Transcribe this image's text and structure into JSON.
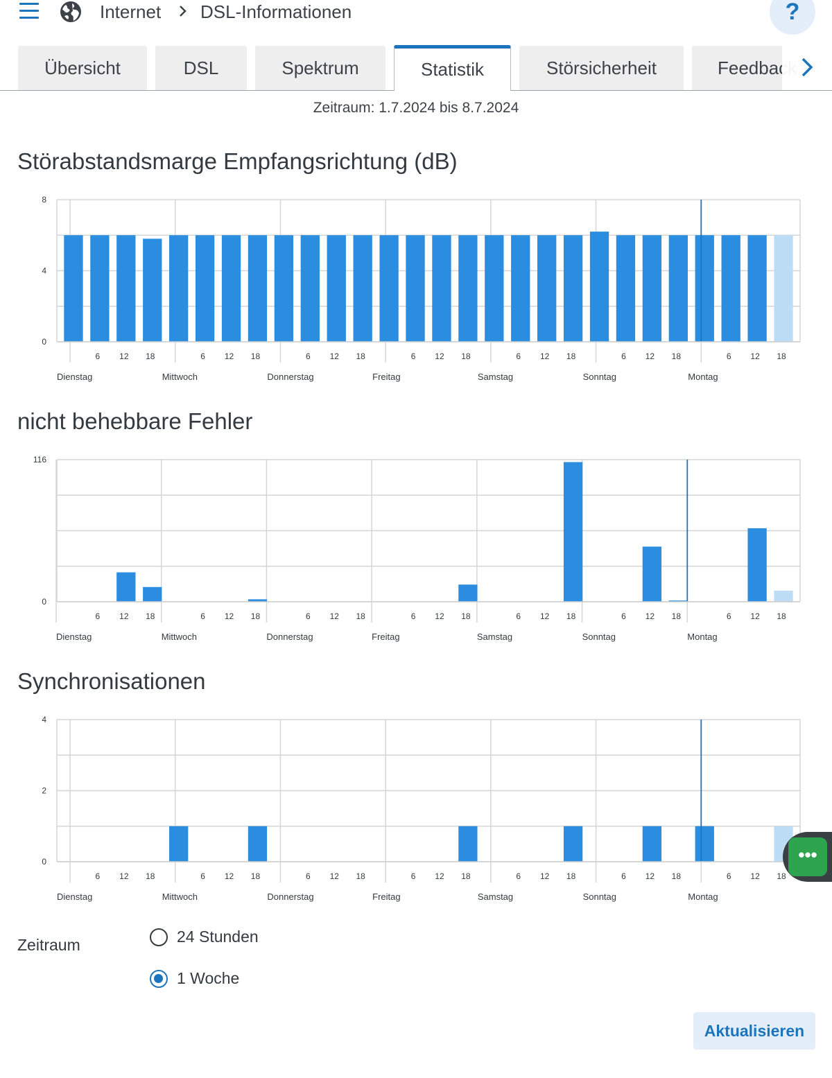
{
  "header": {
    "menu_icon": "menu-icon",
    "globe_icon": "globe-icon",
    "breadcrumb": [
      "Internet",
      "DSL-Informationen"
    ],
    "help_label": "?"
  },
  "tabs": [
    {
      "label": "Übersicht",
      "active": false
    },
    {
      "label": "DSL",
      "active": false
    },
    {
      "label": "Spektrum",
      "active": false
    },
    {
      "label": "Statistik",
      "active": true
    },
    {
      "label": "Störsicherheit",
      "active": false
    },
    {
      "label": "Feedback",
      "active": false
    }
  ],
  "period_text": "Zeitraum: 1.7.2024 bis 8.7.2024",
  "colors": {
    "accent": "#1c75bc",
    "bar": "#2a8de0",
    "bar_current": "#bddcf5",
    "grid": "#d5d5d5"
  },
  "chart_data": [
    {
      "type": "bar",
      "title": "Störabstandsmarge Empfangsrichtung (dB)",
      "yticks": [
        "0",
        "4",
        "8"
      ],
      "ylim": [
        0,
        8
      ],
      "x_hour_ticks": [
        "6",
        "12",
        "18"
      ],
      "x_day_labels": [
        "Dienstag",
        "Mittwoch",
        "Donnerstag",
        "Freitag",
        "Samstag",
        "Sonntag",
        "Montag"
      ],
      "values": [
        6,
        6,
        6,
        5.8,
        6,
        6,
        6,
        6,
        6,
        6,
        6,
        6,
        6,
        6,
        6,
        6,
        6,
        6,
        6,
        6,
        6.2,
        6,
        6,
        6,
        6,
        6,
        6,
        6
      ],
      "current_index": 27
    },
    {
      "type": "bar",
      "title": "nicht behebbare Fehler",
      "yticks": [
        "0",
        "116"
      ],
      "ylim": [
        0,
        116
      ],
      "x_hour_ticks": [
        "6",
        "12",
        "18"
      ],
      "x_day_labels": [
        "Dienstag",
        "Mittwoch",
        "Donnerstag",
        "Freitag",
        "Samstag",
        "Sonntag",
        "Montag"
      ],
      "values": [
        0,
        0,
        24,
        12,
        0,
        0,
        0,
        2,
        0,
        0,
        0,
        0,
        0,
        0,
        0,
        14,
        0,
        0,
        0,
        114,
        0,
        0,
        45,
        1,
        0,
        0,
        60,
        9
      ],
      "current_index": 27
    },
    {
      "type": "bar",
      "title": "Synchronisationen",
      "yticks": [
        "0",
        "2",
        "4"
      ],
      "ylim": [
        0,
        4
      ],
      "x_hour_ticks": [
        "6",
        "12",
        "18"
      ],
      "x_day_labels": [
        "Dienstag",
        "Mittwoch",
        "Donnerstag",
        "Freitag",
        "Samstag",
        "Sonntag",
        "Montag"
      ],
      "values": [
        0,
        0,
        0,
        0,
        1,
        0,
        0,
        1,
        0,
        0,
        0,
        0,
        0,
        0,
        0,
        1,
        0,
        0,
        0,
        1,
        0,
        0,
        1,
        0,
        1,
        0,
        0,
        1
      ],
      "current_index": 27
    }
  ],
  "zeitraum": {
    "label": "Zeitraum",
    "options": [
      {
        "label": "24 Stunden",
        "checked": false
      },
      {
        "label": "1 Woche",
        "checked": true
      }
    ]
  },
  "update_label": "Aktualisieren",
  "float_label": "•••"
}
